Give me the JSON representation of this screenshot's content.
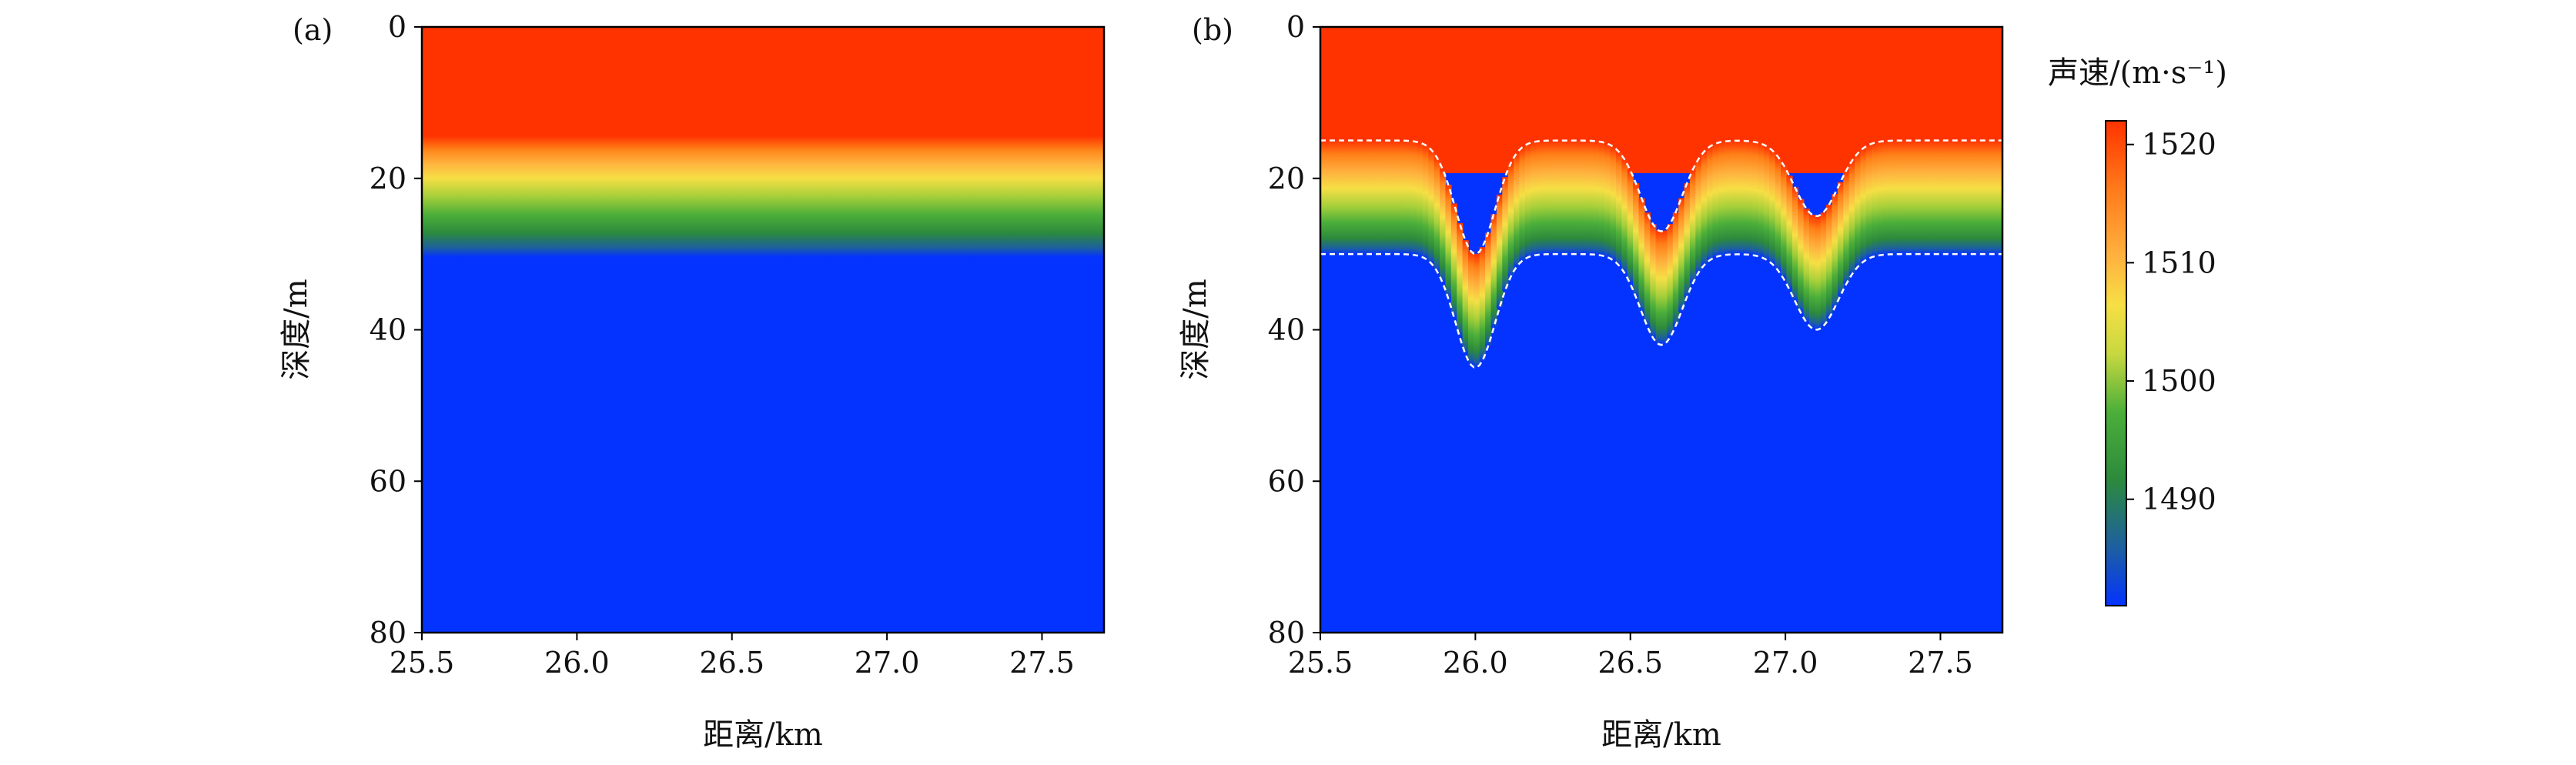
{
  "chart_data": [
    {
      "type": "heatmap",
      "panel_label": "(a)",
      "xlabel": "距离/km",
      "ylabel": "深度/m",
      "xlim": [
        25.5,
        27.7
      ],
      "ylim": [
        0,
        80
      ],
      "y_inverted": true,
      "x_ticks": [
        "25.5",
        "26.0",
        "26.5",
        "27.0",
        "27.5"
      ],
      "y_ticks": [
        "0",
        "20",
        "40",
        "60",
        "80"
      ],
      "thermocline_top_depth": 15,
      "thermocline_bottom_depth": 30
    },
    {
      "type": "heatmap",
      "panel_label": "(b)",
      "xlabel": "距离/km",
      "ylabel": "深度/m",
      "xlim": [
        25.5,
        27.7
      ],
      "ylim": [
        0,
        80
      ],
      "y_inverted": true,
      "x_ticks": [
        "25.5",
        "26.0",
        "26.5",
        "27.0",
        "27.5"
      ],
      "y_ticks": [
        "0",
        "20",
        "40",
        "60",
        "80"
      ],
      "thermocline_top_depth": 15,
      "thermocline_bottom_depth": 30,
      "internal_wave_troughs": [
        {
          "x": 26.0,
          "top_depth": 30,
          "bottom_depth": 45
        },
        {
          "x": 26.6,
          "top_depth": 27,
          "bottom_depth": 42
        },
        {
          "x": 27.1,
          "top_depth": 25,
          "bottom_depth": 40
        }
      ],
      "boundary_lines": "white dashed"
    }
  ],
  "colorbar": {
    "title": "声速/(m·s⁻¹)",
    "min": 1481,
    "max": 1522,
    "ticks": [
      "1490",
      "1500",
      "1510",
      "1520"
    ],
    "colors": [
      "#0433ff",
      "#2e7d3a",
      "#4caf50",
      "#f5e04a",
      "#ffb23f",
      "#ff7a1a",
      "#ff3b00"
    ]
  }
}
